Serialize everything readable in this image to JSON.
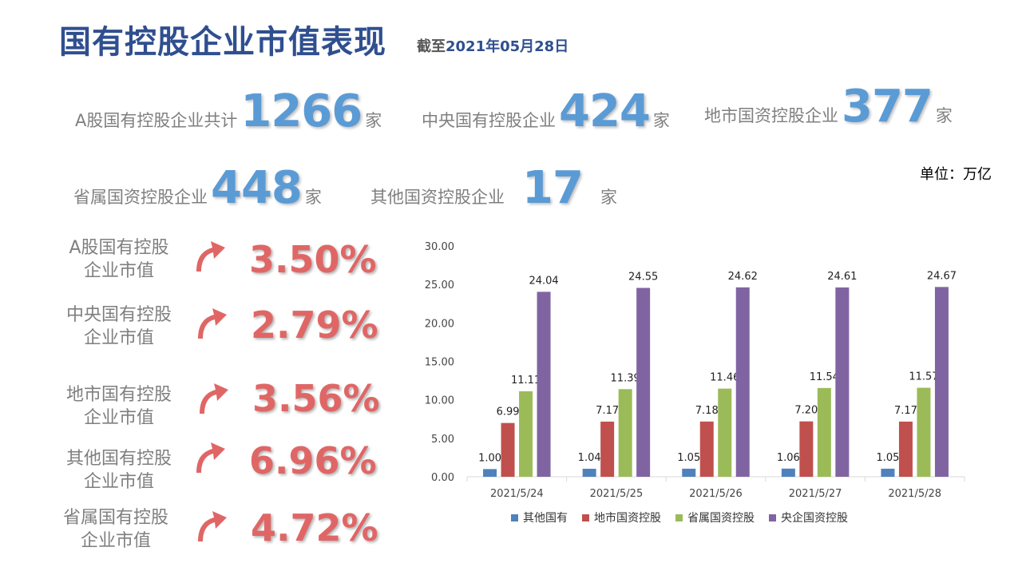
{
  "header": {
    "title": "国有控股企业市值表现",
    "date_prefix": "截至",
    "date": "2021年05月28日"
  },
  "stats": [
    {
      "label": "A股国有控股企业共计",
      "value": "1266",
      "unit": "家"
    },
    {
      "label": "中央国有控股企业",
      "value": "424",
      "unit": "家"
    },
    {
      "label": "地市国资控股企业",
      "value": "377",
      "unit": "家"
    },
    {
      "label": "省属国资控股企业",
      "value": "448",
      "unit": "家"
    },
    {
      "label": "其他国资控股企业",
      "value": "17",
      "unit": "家"
    }
  ],
  "unit_label": "单位：万亿",
  "metrics": [
    {
      "line1": "A股国有控股",
      "line2": "企业市值",
      "value": "3.50%"
    },
    {
      "line1": "中央国有控股",
      "line2": "企业市值",
      "value": "2.79%"
    },
    {
      "line1": "地市国有控股",
      "line2": "企业市值",
      "value": "3.56%"
    },
    {
      "line1": "其他国有控股",
      "line2": "企业市值",
      "value": "6.96%"
    },
    {
      "line1": "省属国有控股",
      "line2": "企业市值",
      "value": "4.72%"
    }
  ],
  "colors": {
    "accent": "#e06666",
    "stat_blue": "#5b9bd5",
    "title": "#2f4f8f"
  },
  "chart_data": {
    "type": "bar",
    "categories": [
      "2021/5/24",
      "2021/5/25",
      "2021/5/26",
      "2021/5/27",
      "2021/5/28"
    ],
    "series": [
      {
        "name": "其他国有",
        "color": "#4f81bd",
        "values": [
          1.0,
          1.04,
          1.05,
          1.06,
          1.05
        ]
      },
      {
        "name": "地市国资控股",
        "color": "#c0504d",
        "values": [
          6.99,
          7.17,
          7.18,
          7.2,
          7.17
        ]
      },
      {
        "name": "省属国资控股",
        "color": "#9bbb59",
        "values": [
          11.11,
          11.39,
          11.46,
          11.54,
          11.57
        ]
      },
      {
        "name": "央企国资控股",
        "color": "#8064a2",
        "values": [
          24.04,
          24.55,
          24.62,
          24.61,
          24.67
        ]
      }
    ],
    "ylim": [
      0,
      30
    ],
    "yticks": [
      "0.00",
      "5.00",
      "10.00",
      "15.00",
      "20.00",
      "25.00",
      "30.00"
    ],
    "legend": "bottom",
    "grid": false
  }
}
